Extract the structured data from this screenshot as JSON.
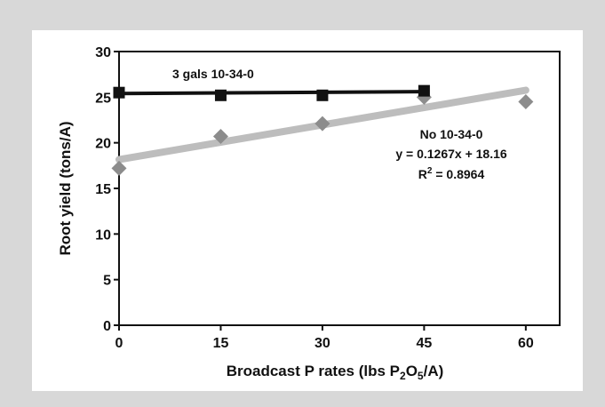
{
  "chart_data": {
    "type": "scatter",
    "title": "",
    "xlabel": "Broadcast P rates (lbs P2O5/A)",
    "xlabel_parts": {
      "prefix": "Broadcast P rates (lbs P",
      "sub1": "2",
      "mid": "O",
      "sub2": "5",
      "suffix": "/A)"
    },
    "ylabel": "Root yield (tons/A)",
    "xlim": [
      0,
      65
    ],
    "ylim": [
      0,
      30
    ],
    "xticks": [
      0,
      15,
      30,
      45,
      60
    ],
    "yticks": [
      0,
      5,
      10,
      15,
      20,
      25,
      30
    ],
    "grid": false,
    "series": [
      {
        "name": "3 gals 10-34-0",
        "marker": "square",
        "color": "#111111",
        "x": [
          0,
          15,
          30,
          45
        ],
        "y": [
          25.5,
          25.2,
          25.2,
          25.7
        ],
        "trendline": {
          "x": [
            0,
            45
          ],
          "y": [
            25.4,
            25.6
          ],
          "color": "#111111"
        }
      },
      {
        "name": "No 10-34-0",
        "marker": "diamond",
        "color": "#8c8c8c",
        "x": [
          0,
          15,
          30,
          45,
          60
        ],
        "y": [
          17.2,
          20.7,
          22.1,
          25.0,
          24.5
        ],
        "trendline": {
          "x": [
            0,
            60
          ],
          "y": [
            18.16,
            25.76
          ],
          "color": "#bdbdbd"
        }
      }
    ],
    "annotations": {
      "series1_label": "3 gals 10-34-0",
      "series2_label": "No 10-34-0",
      "equation": "y = 0.1267x + 18.16",
      "r2_prefix": "R",
      "r2_sup": "2",
      "r2_value": " = 0.8964"
    }
  }
}
